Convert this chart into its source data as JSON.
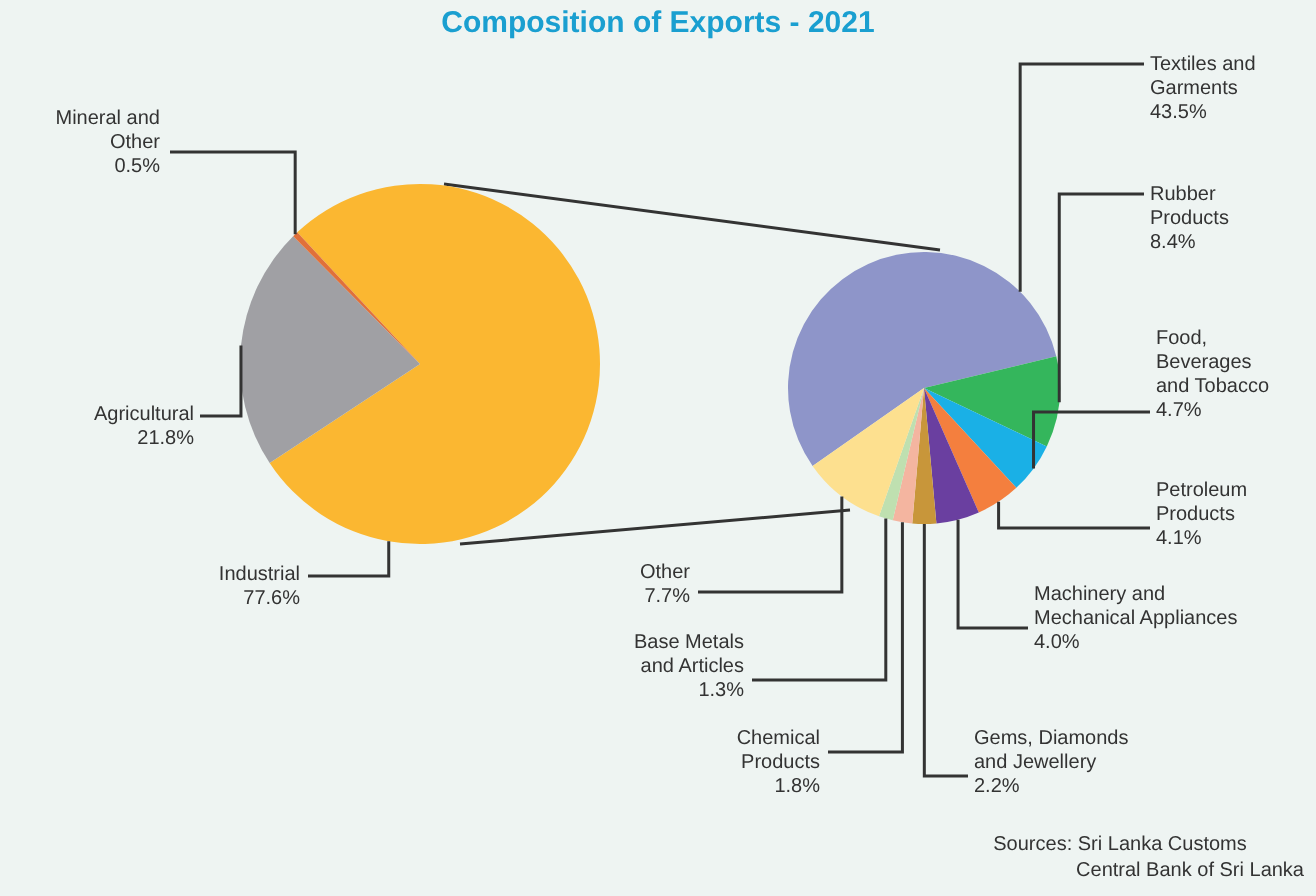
{
  "chart_data": [
    {
      "type": "pie",
      "title": "Composition of Exports - 2021",
      "categories": [
        "Industrial",
        "Agricultural",
        "Mineral and\nOther"
      ],
      "values": [
        77.6,
        21.8,
        0.5
      ],
      "value_labels": [
        "77.6%",
        "21.8%",
        "0.5%"
      ],
      "colors": [
        "#fbb731",
        "#a0a0a4",
        "#e0703a"
      ]
    },
    {
      "type": "pie",
      "categories": [
        "Textiles and\nGarments",
        "Rubber\nProducts",
        "Food,\nBeverages\nand Tobacco",
        "Petroleum\nProducts",
        "Machinery and\nMechanical Appliances",
        "Gems, Diamonds\nand Jewellery",
        "Chemical\nProducts",
        "Base Metals\nand Articles",
        "Other"
      ],
      "values": [
        43.5,
        8.4,
        4.7,
        4.1,
        4.0,
        2.2,
        1.8,
        1.3,
        7.7
      ],
      "value_labels": [
        "43.5%",
        "8.4%",
        "4.7%",
        "4.1%",
        "4.0%",
        "2.2%",
        "1.8%",
        "1.3%",
        "7.7%"
      ],
      "colors": [
        "#8e95c9",
        "#34b65c",
        "#1ab0e6",
        "#f47f3e",
        "#6a3fa0",
        "#c8963a",
        "#f4b5a0",
        "#bfe0b0",
        "#fde08f"
      ],
      "annotations": [
        "Sources: Sri Lanka Customs\nCentral Bank of Sri Lanka"
      ]
    }
  ]
}
